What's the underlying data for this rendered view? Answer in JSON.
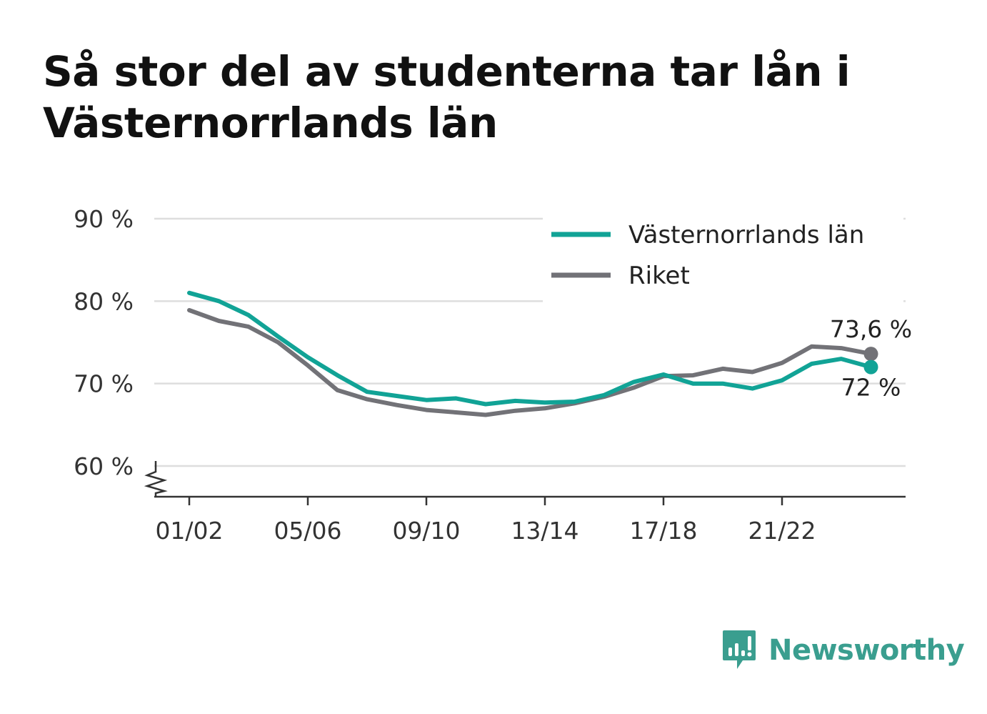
{
  "title": "Så stor del av studenterna tar lån i Västernorrlands län",
  "brand": {
    "name": "Newsworthy",
    "icon": "newsworthy-logo-icon",
    "color": "#3a9e8f"
  },
  "chart_data": {
    "type": "line",
    "title": "Så stor del av studenterna tar lån i Västernorrlands län",
    "xlabel": "",
    "ylabel": "",
    "ylim": [
      60,
      90
    ],
    "y_axis_broken": true,
    "yticks": [
      60,
      70,
      80,
      90
    ],
    "ytick_labels": [
      "60 %",
      "70 %",
      "80 %",
      "90 %"
    ],
    "x": [
      "01/02",
      "02/03",
      "03/04",
      "04/05",
      "05/06",
      "06/07",
      "07/08",
      "08/09",
      "09/10",
      "10/11",
      "11/12",
      "12/13",
      "13/14",
      "14/15",
      "15/16",
      "16/17",
      "17/18",
      "18/19",
      "19/20",
      "20/21",
      "21/22",
      "22/23",
      "23/24",
      "24/25"
    ],
    "xtick_labels": [
      "01/02",
      "05/06",
      "09/10",
      "13/14",
      "17/18",
      "21/22"
    ],
    "grid": true,
    "legend_position": "top-right",
    "series": [
      {
        "name": "Västernorrlands län",
        "color": "#11a396",
        "values": [
          81.0,
          80.0,
          78.3,
          75.7,
          73.2,
          71.0,
          69.0,
          68.5,
          68.0,
          68.2,
          67.5,
          67.9,
          67.7,
          67.8,
          68.6,
          70.2,
          71.1,
          70.0,
          70.0,
          69.4,
          70.4,
          72.4,
          73.0,
          72.0
        ],
        "end_label": "72 %"
      },
      {
        "name": "Riket",
        "color": "#727277",
        "values": [
          78.9,
          77.6,
          76.9,
          75.0,
          72.2,
          69.2,
          68.1,
          67.4,
          66.8,
          66.5,
          66.2,
          66.7,
          67.0,
          67.6,
          68.4,
          69.5,
          70.9,
          71.0,
          71.8,
          71.4,
          72.5,
          74.5,
          74.3,
          73.6
        ],
        "end_label": "73,6 %"
      }
    ]
  }
}
